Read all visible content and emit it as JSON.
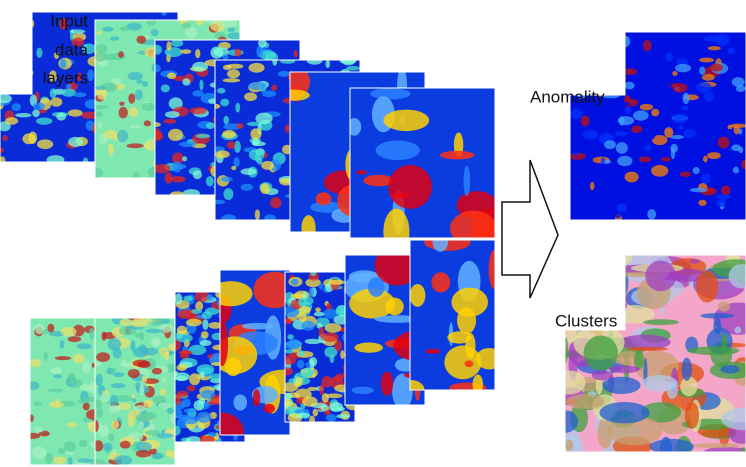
{
  "input_label": [
    "Input",
    "data",
    "layers"
  ],
  "anomality_label": "Anomality",
  "clusters_label": "Clusters"
}
